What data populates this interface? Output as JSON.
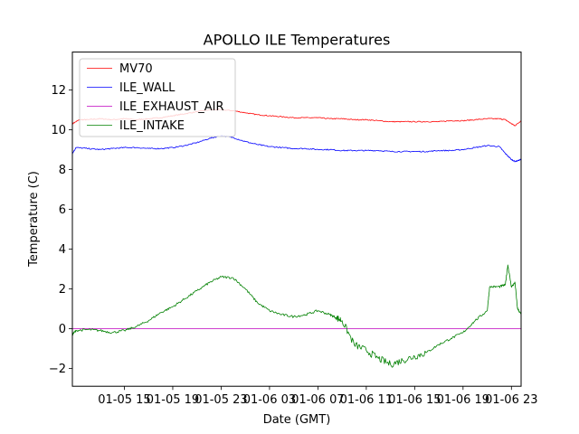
{
  "chart_data": {
    "type": "line",
    "title": "APOLLO ILE Temperatures",
    "xlabel": "Date (GMT)",
    "ylabel": "Temperature (C)",
    "xlim": [
      10.7,
      47.8
    ],
    "ylim": [
      -2.9,
      13.9
    ],
    "grid": false,
    "legend": "top-left",
    "x_ticks": [
      {
        "value": 15,
        "label": "01-05 15"
      },
      {
        "value": 19,
        "label": "01-05 19"
      },
      {
        "value": 23,
        "label": "01-05 23"
      },
      {
        "value": 27,
        "label": "01-06 03"
      },
      {
        "value": 31,
        "label": "01-06 07"
      },
      {
        "value": 35,
        "label": "01-06 11"
      },
      {
        "value": 39,
        "label": "01-06 15"
      },
      {
        "value": 43,
        "label": "01-06 19"
      },
      {
        "value": 47,
        "label": "01-06 23"
      }
    ],
    "y_ticks": [
      {
        "value": -2,
        "label": "−2"
      },
      {
        "value": 0,
        "label": "0"
      },
      {
        "value": 2,
        "label": "2"
      },
      {
        "value": 4,
        "label": "4"
      },
      {
        "value": 6,
        "label": "6"
      },
      {
        "value": 8,
        "label": "8"
      },
      {
        "value": 10,
        "label": "10"
      },
      {
        "value": 12,
        "label": "12"
      }
    ],
    "x_unit": "hours since 01-05 00:00 GMT",
    "series": [
      {
        "name": "MV70",
        "color": "#ff0000",
        "x": [
          10.7,
          11.3,
          12.0,
          13.0,
          14.0,
          15.0,
          16.0,
          17.0,
          18.0,
          19.0,
          20.0,
          21.0,
          22.0,
          23.0,
          24.0,
          25.0,
          26.0,
          27.0,
          28.0,
          29.0,
          30.0,
          31.0,
          32.0,
          33.0,
          34.0,
          35.0,
          36.0,
          37.0,
          38.0,
          39.0,
          40.0,
          41.0,
          42.0,
          43.0,
          44.0,
          45.0,
          46.0,
          46.5,
          47.0,
          47.3,
          47.8
        ],
        "y": [
          10.3,
          10.5,
          10.5,
          10.55,
          10.5,
          10.55,
          10.5,
          10.55,
          10.6,
          10.7,
          10.8,
          10.9,
          11.0,
          11.0,
          10.95,
          10.85,
          10.75,
          10.7,
          10.65,
          10.6,
          10.6,
          10.6,
          10.55,
          10.55,
          10.5,
          10.5,
          10.45,
          10.4,
          10.4,
          10.4,
          10.4,
          10.4,
          10.45,
          10.45,
          10.5,
          10.55,
          10.55,
          10.5,
          10.3,
          10.2,
          10.45
        ]
      },
      {
        "name": "ILE_WALL",
        "color": "#0000ff",
        "x": [
          10.7,
          11.0,
          12.0,
          13.0,
          14.0,
          15.0,
          16.0,
          17.0,
          18.0,
          19.0,
          20.0,
          21.0,
          22.0,
          23.0,
          24.0,
          25.0,
          26.0,
          27.0,
          28.0,
          29.0,
          30.0,
          31.0,
          32.0,
          33.0,
          34.0,
          35.0,
          36.0,
          37.0,
          38.0,
          39.0,
          40.0,
          41.0,
          42.0,
          43.0,
          44.0,
          45.0,
          46.0,
          46.5,
          47.0,
          47.3,
          47.8
        ],
        "y": [
          8.8,
          9.1,
          9.05,
          9.0,
          9.05,
          9.1,
          9.1,
          9.05,
          9.05,
          9.1,
          9.2,
          9.35,
          9.55,
          9.7,
          9.6,
          9.4,
          9.25,
          9.15,
          9.1,
          9.05,
          9.05,
          9.0,
          9.0,
          8.95,
          8.95,
          8.95,
          8.95,
          8.9,
          8.9,
          8.9,
          8.9,
          8.95,
          8.95,
          9.0,
          9.1,
          9.2,
          9.15,
          8.8,
          8.5,
          8.4,
          8.5
        ]
      },
      {
        "name": "ILE_EXHAUST_AIR",
        "color": "#bf00bf",
        "x": [
          10.7,
          47.8
        ],
        "y": [
          0.0,
          0.0
        ]
      },
      {
        "name": "ILE_INTAKE",
        "color": "#008000",
        "x": [
          10.7,
          11.0,
          12.0,
          13.0,
          14.0,
          15.0,
          16.0,
          17.0,
          18.0,
          19.0,
          20.0,
          21.0,
          22.0,
          23.0,
          24.0,
          25.0,
          26.0,
          27.0,
          28.0,
          29.0,
          30.0,
          31.0,
          32.0,
          32.5,
          33.0,
          34.0,
          35.0,
          36.0,
          37.0,
          38.0,
          39.0,
          40.0,
          41.0,
          42.0,
          43.0,
          44.0,
          45.0,
          45.2,
          46.0,
          46.5,
          46.7,
          47.0,
          47.3,
          47.5,
          47.8
        ],
        "y": [
          -0.3,
          -0.1,
          -0.05,
          -0.1,
          -0.2,
          -0.1,
          0.1,
          0.4,
          0.8,
          1.1,
          1.5,
          1.9,
          2.3,
          2.6,
          2.55,
          2.0,
          1.3,
          0.9,
          0.7,
          0.6,
          0.7,
          0.9,
          0.7,
          0.55,
          0.4,
          -0.8,
          -1.1,
          -1.5,
          -1.8,
          -1.6,
          -1.4,
          -1.2,
          -0.8,
          -0.5,
          -0.2,
          0.4,
          0.9,
          2.1,
          2.1,
          2.2,
          3.2,
          2.1,
          2.3,
          1.0,
          0.7
        ]
      }
    ]
  }
}
